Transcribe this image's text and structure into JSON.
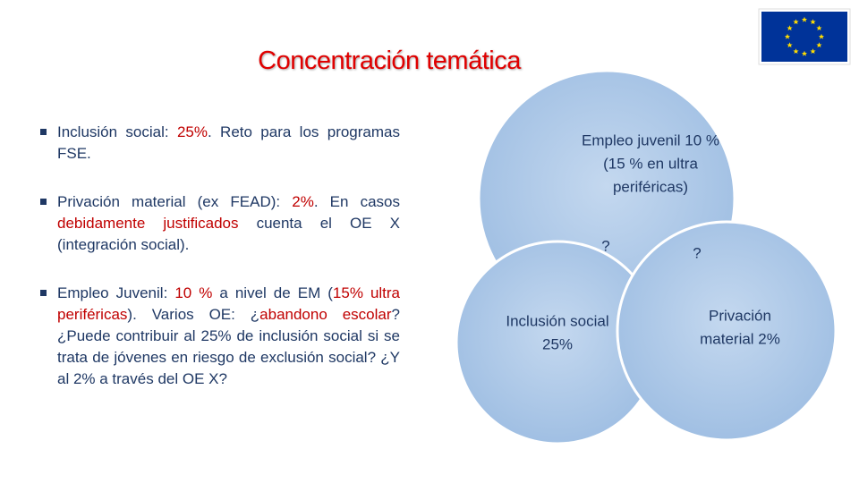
{
  "title": "Concentración temática",
  "bullets": [
    {
      "runs": [
        {
          "text": "Inclusión social: ",
          "color": "#1f3864"
        },
        {
          "text": "25%",
          "color": "#c00000"
        },
        {
          "text": ". Reto para los programas FSE.",
          "color": "#1f3864"
        }
      ]
    },
    {
      "runs": [
        {
          "text": "Privación material (ex FEAD): ",
          "color": "#1f3864"
        },
        {
          "text": "2%",
          "color": "#c00000"
        },
        {
          "text": ". En casos ",
          "color": "#1f3864"
        },
        {
          "text": "debidamente justificados",
          "color": "#c00000"
        },
        {
          "text": " cuenta el OE X (integración social).",
          "color": "#1f3864"
        }
      ]
    },
    {
      "runs": [
        {
          "text": "Empleo Juvenil: ",
          "color": "#1f3864"
        },
        {
          "text": "10 %",
          "color": "#c00000"
        },
        {
          "text": " a nivel de EM (",
          "color": "#1f3864"
        },
        {
          "text": "15% ultra periféricas",
          "color": "#c00000"
        },
        {
          "text": "). Varios OE: ¿",
          "color": "#1f3864"
        },
        {
          "text": "abandono escolar",
          "color": "#c00000"
        },
        {
          "text": "? ¿Puede contribuir al 25% de inclusión social si se trata de jóvenes en riesgo de exclusión social? ¿Y al 2% a través del OE X?",
          "color": "#1f3864"
        }
      ]
    }
  ],
  "venn": {
    "top": [
      "Empleo juvenil 10 %",
      "(15 % en ultra",
      "periféricas)"
    ],
    "left": [
      "Inclusión social",
      "25%"
    ],
    "right": [
      "Privación",
      "material 2%"
    ],
    "overlap_left": "?",
    "overlap_right": "?"
  }
}
